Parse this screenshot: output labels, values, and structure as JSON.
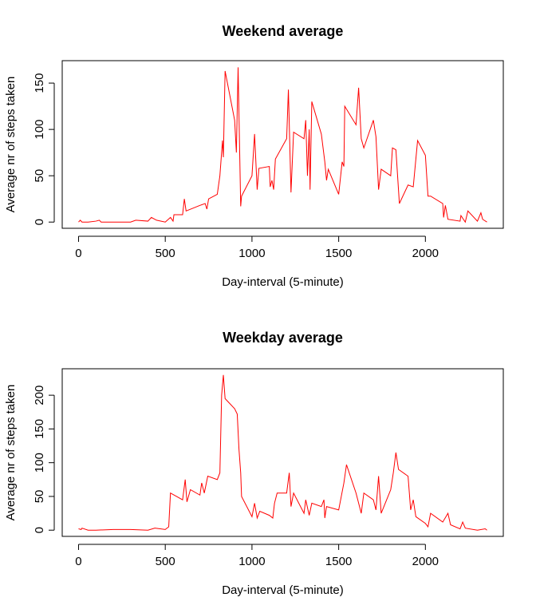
{
  "chart_data": [
    {
      "type": "line",
      "title": "Weekend average",
      "xlabel": "Day-interval (5-minute)",
      "ylabel": "Average nr of steps taken",
      "color": "#ff0000",
      "x": [
        0,
        10,
        20,
        55,
        100,
        120,
        130,
        200,
        300,
        330,
        400,
        420,
        450,
        500,
        530,
        545,
        550,
        600,
        610,
        620,
        700,
        730,
        740,
        750,
        800,
        815,
        830,
        835,
        845,
        900,
        910,
        920,
        935,
        940,
        1000,
        1015,
        1030,
        1040,
        1100,
        1105,
        1115,
        1125,
        1135,
        1200,
        1210,
        1225,
        1240,
        1300,
        1310,
        1320,
        1330,
        1335,
        1345,
        1400,
        1420,
        1430,
        1440,
        1500,
        1520,
        1530,
        1535,
        1600,
        1615,
        1630,
        1645,
        1700,
        1715,
        1730,
        1745,
        1800,
        1810,
        1830,
        1850,
        1900,
        1930,
        1955,
        2000,
        2015,
        2030,
        2100,
        2105,
        2115,
        2130,
        2200,
        2205,
        2230,
        2245,
        2300,
        2320,
        2330,
        2355
      ],
      "values": [
        0,
        2,
        0,
        0,
        1,
        2,
        0,
        0,
        0,
        2,
        1,
        5,
        2,
        0,
        5,
        1,
        8,
        8,
        25,
        12,
        18,
        20,
        14,
        25,
        30,
        50,
        88,
        70,
        163,
        110,
        75,
        167,
        17,
        28,
        50,
        95,
        35,
        58,
        60,
        38,
        45,
        35,
        68,
        90,
        143,
        32,
        97,
        90,
        110,
        50,
        100,
        35,
        130,
        95,
        65,
        45,
        57,
        30,
        65,
        60,
        125,
        105,
        145,
        90,
        80,
        110,
        92,
        35,
        57,
        50,
        80,
        78,
        20,
        40,
        38,
        88,
        72,
        28,
        28,
        20,
        5,
        18,
        3,
        1,
        7,
        0,
        12,
        1,
        10,
        3,
        0
      ],
      "xlim": [
        -94.2,
        2449.2
      ],
      "ylim": [
        -6.7,
        174.2
      ],
      "xticks": [
        0,
        500,
        1000,
        1500,
        2000
      ],
      "yticks": [
        0,
        50,
        100,
        150
      ]
    },
    {
      "type": "line",
      "title": "Weekday average",
      "xlabel": "Day-interval (5-minute)",
      "ylabel": "Average nr of steps taken",
      "color": "#ff0000",
      "x": [
        0,
        15,
        20,
        55,
        100,
        200,
        300,
        400,
        440,
        500,
        520,
        530,
        600,
        615,
        625,
        645,
        700,
        710,
        725,
        745,
        800,
        815,
        825,
        835,
        845,
        900,
        915,
        925,
        935,
        940,
        1000,
        1015,
        1030,
        1045,
        1100,
        1120,
        1130,
        1145,
        1200,
        1215,
        1225,
        1240,
        1300,
        1310,
        1330,
        1345,
        1400,
        1415,
        1420,
        1430,
        1500,
        1515,
        1530,
        1545,
        1600,
        1615,
        1630,
        1645,
        1700,
        1715,
        1730,
        1745,
        1800,
        1815,
        1830,
        1845,
        1900,
        1915,
        1930,
        1945,
        2000,
        2015,
        2030,
        2100,
        2130,
        2145,
        2200,
        2215,
        2230,
        2300,
        2345,
        2355
      ],
      "values": [
        2,
        1,
        3,
        0,
        0,
        1,
        1,
        0,
        3,
        1,
        5,
        55,
        45,
        75,
        42,
        60,
        52,
        70,
        55,
        80,
        75,
        85,
        200,
        230,
        195,
        180,
        172,
        120,
        85,
        50,
        20,
        40,
        18,
        28,
        22,
        18,
        40,
        55,
        55,
        85,
        35,
        55,
        25,
        45,
        22,
        40,
        35,
        45,
        18,
        35,
        30,
        50,
        70,
        97,
        55,
        40,
        25,
        55,
        45,
        30,
        80,
        25,
        60,
        85,
        115,
        90,
        80,
        30,
        45,
        20,
        10,
        5,
        25,
        12,
        25,
        8,
        2,
        12,
        3,
        0,
        2,
        0
      ],
      "xlim": [
        -94.2,
        2449.2
      ],
      "ylim": [
        -9.2,
        239.2
      ],
      "xticks": [
        0,
        500,
        1000,
        1500,
        2000
      ],
      "yticks": [
        0,
        50,
        100,
        150,
        200
      ]
    }
  ]
}
